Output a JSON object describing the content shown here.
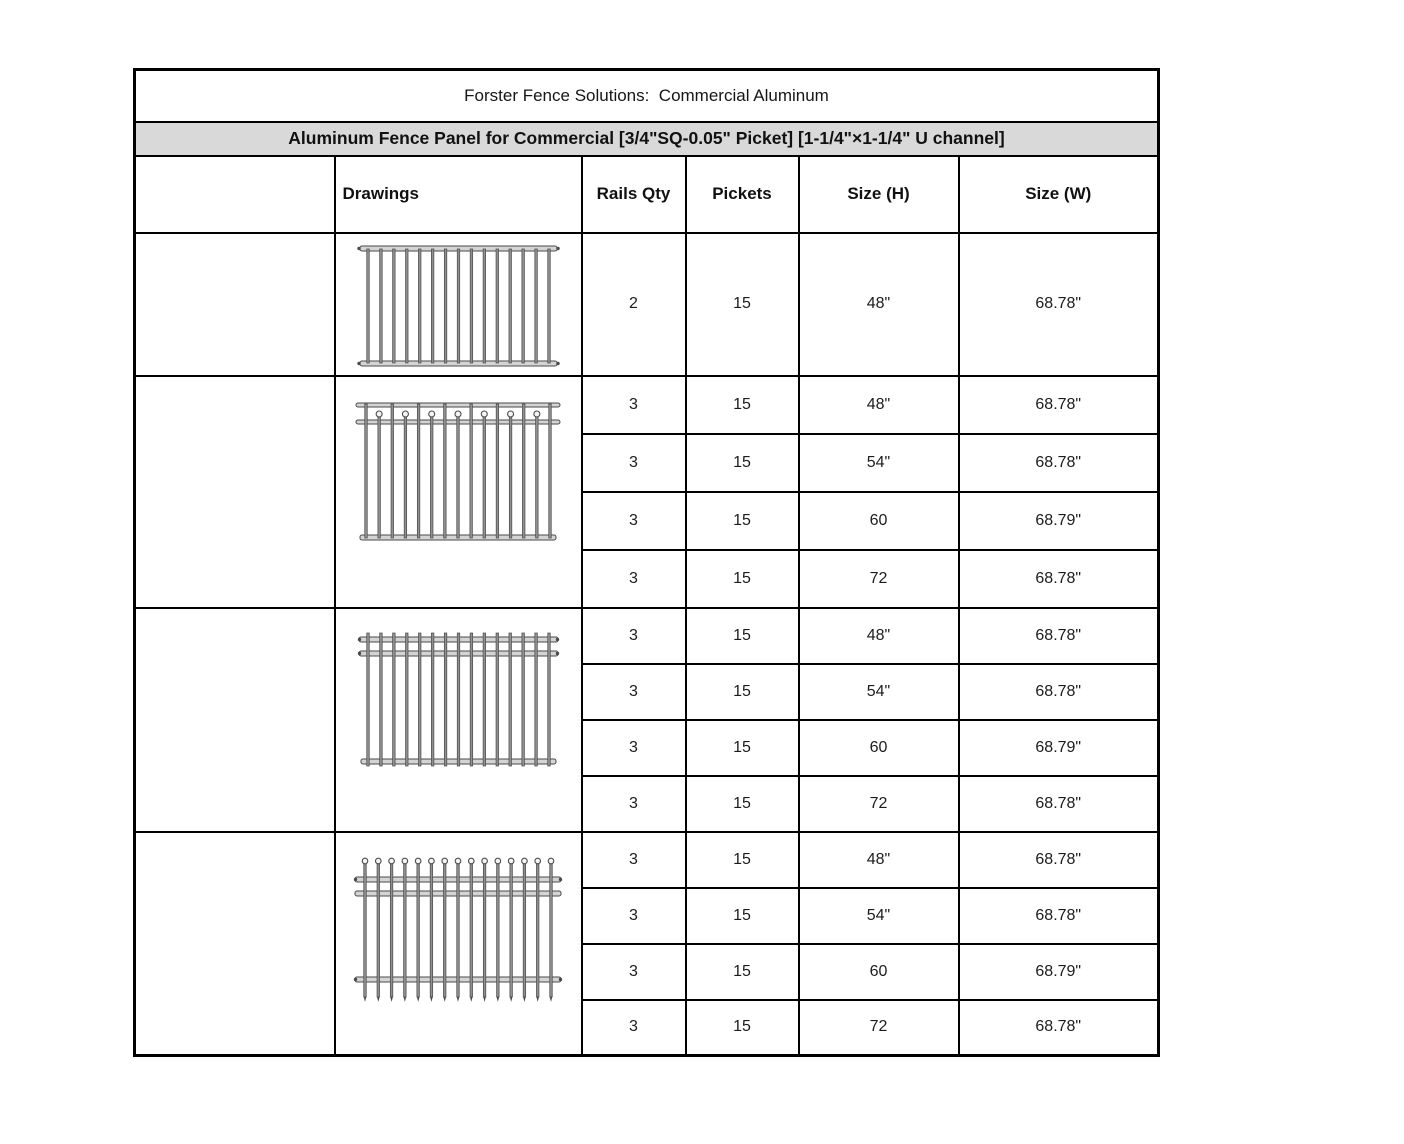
{
  "doc": {
    "title": "Forster Fence Solutions:  Commercial Aluminum",
    "subtitle": "Aluminum Fence Panel for Commercial [3/4\"SQ-0.05\" Picket] [1-1/4\"×1-1/4\" U channel]"
  },
  "colors": {
    "subtitle_band": "#d9d9d9",
    "border": "#000000",
    "fence_rail": "#d4d4d4",
    "fence_picket": "#8f8f8f"
  },
  "table": {
    "headers": [
      "",
      "Drawings",
      "Rails Qty",
      "Pickets",
      "Size (H)",
      "Size (W)"
    ],
    "sections": [
      {
        "drawing": "flat-top-2-rail",
        "drawing_label": "Flat top panel with 2 rails",
        "rows": [
          {
            "rails_qty": "2",
            "pickets": "15",
            "size_h": "48\"",
            "size_w": "68.78\""
          }
        ]
      },
      {
        "drawing": "ring-top-3-rail",
        "drawing_label": "Alternating ring-top pickets with 3 rails",
        "rows": [
          {
            "rails_qty": "3",
            "pickets": "15",
            "size_h": "48\"",
            "size_w": "68.78\""
          },
          {
            "rails_qty": "3",
            "pickets": "15",
            "size_h": "54\"",
            "size_w": "68.78\""
          },
          {
            "rails_qty": "3",
            "pickets": "15",
            "size_h": "60",
            "size_w": "68.79\""
          },
          {
            "rails_qty": "3",
            "pickets": "15",
            "size_h": "72",
            "size_w": "68.78\""
          }
        ]
      },
      {
        "drawing": "flat-top-3-rail",
        "drawing_label": "Flat top panel with 3 rails",
        "rows": [
          {
            "rails_qty": "3",
            "pickets": "15",
            "size_h": "48\"",
            "size_w": "68.78\""
          },
          {
            "rails_qty": "3",
            "pickets": "15",
            "size_h": "54\"",
            "size_w": "68.78\""
          },
          {
            "rails_qty": "3",
            "pickets": "15",
            "size_h": "60",
            "size_w": "68.79\""
          },
          {
            "rails_qty": "3",
            "pickets": "15",
            "size_h": "72",
            "size_w": "68.78\""
          }
        ]
      },
      {
        "drawing": "ball-top-extended",
        "drawing_label": "Ball-top extended pickets with 3 rails",
        "rows": [
          {
            "rails_qty": "3",
            "pickets": "15",
            "size_h": "48\"",
            "size_w": "68.78\""
          },
          {
            "rails_qty": "3",
            "pickets": "15",
            "size_h": "54\"",
            "size_w": "68.78\""
          },
          {
            "rails_qty": "3",
            "pickets": "15",
            "size_h": "60",
            "size_w": "68.79\""
          },
          {
            "rails_qty": "3",
            "pickets": "15",
            "size_h": "72",
            "size_w": "68.78\""
          }
        ]
      }
    ]
  }
}
